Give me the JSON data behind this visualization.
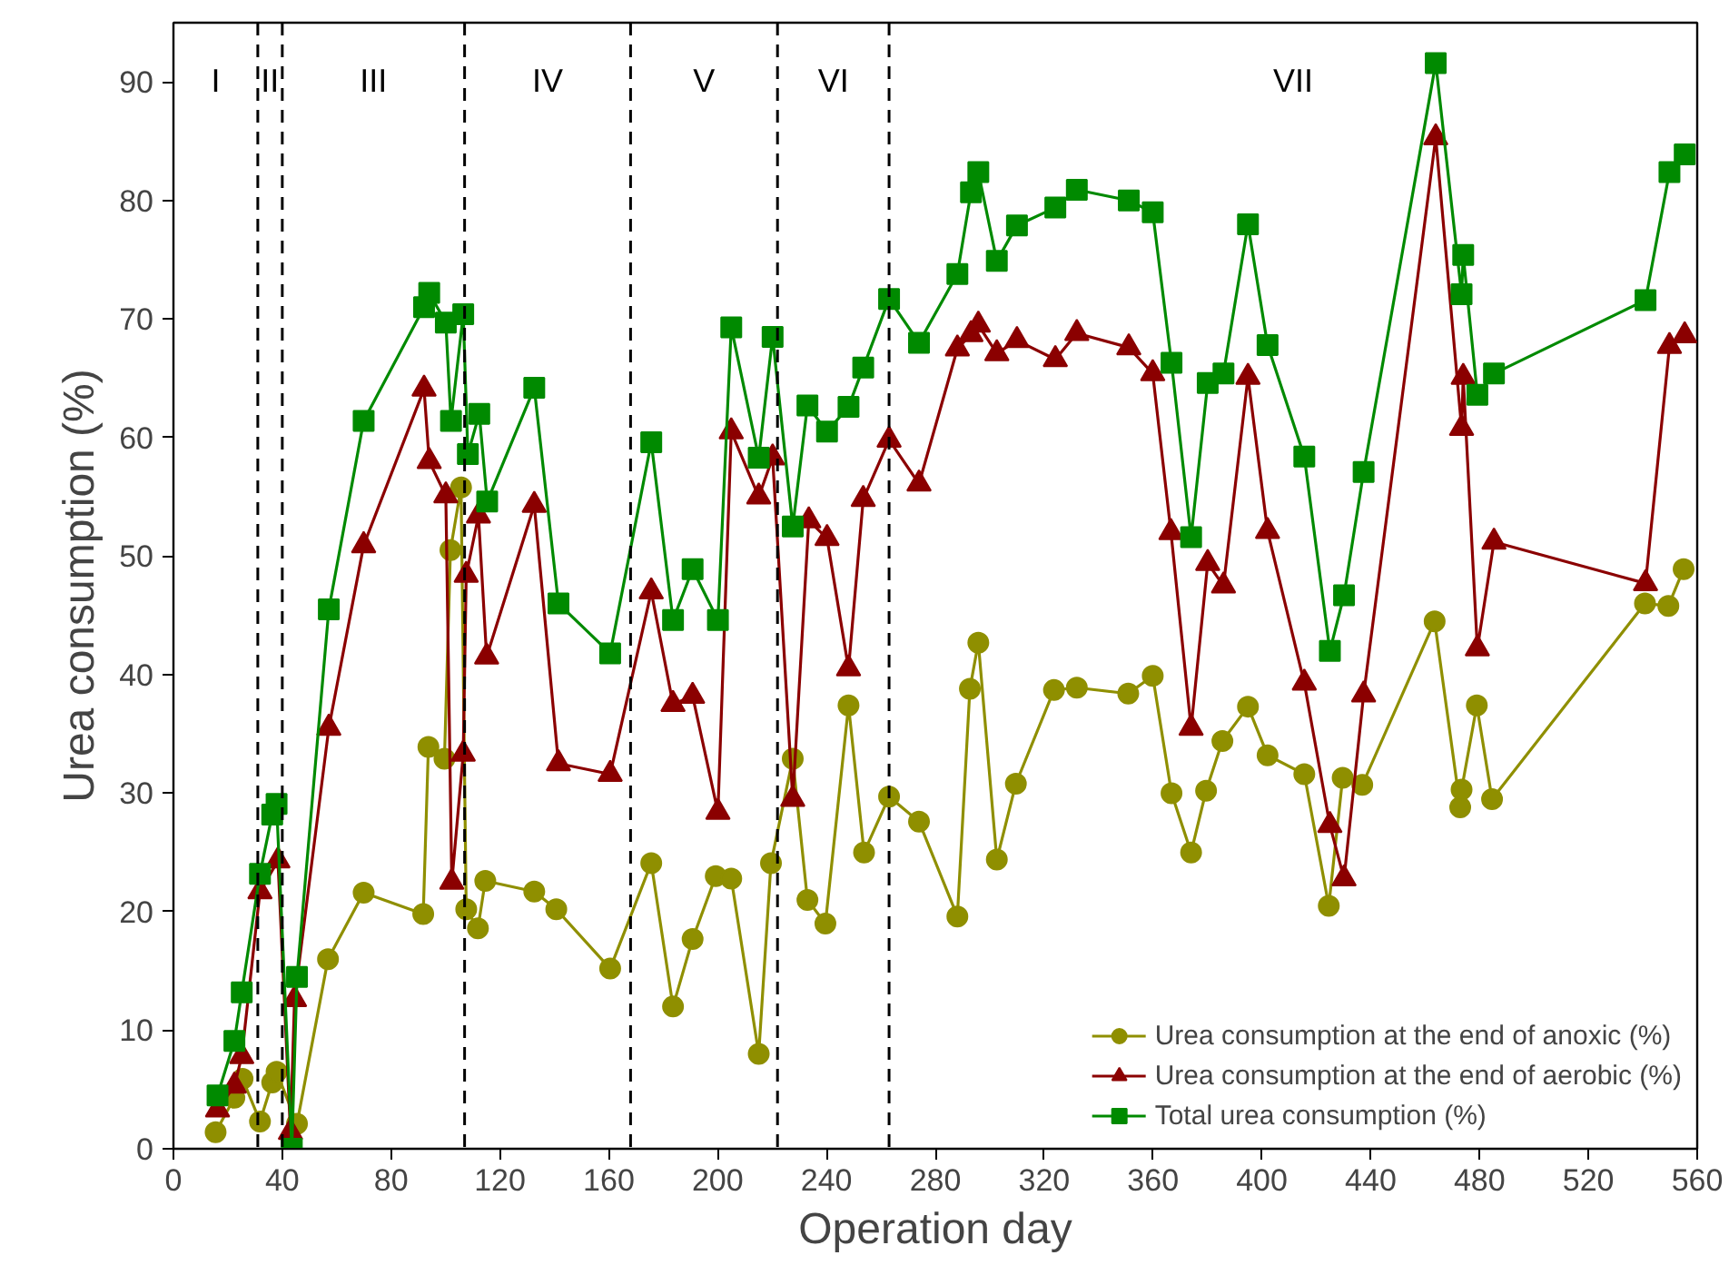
{
  "chart_data": {
    "type": "line",
    "xlabel": "Operation day",
    "ylabel": "Urea consumption (%)",
    "xlim": [
      0,
      560
    ],
    "xticks": [
      0,
      40,
      80,
      120,
      160,
      200,
      240,
      280,
      320,
      360,
      400,
      440,
      480,
      520,
      560
    ],
    "ylim": [
      0,
      95
    ],
    "yticks": [
      0,
      10,
      20,
      30,
      40,
      50,
      60,
      70,
      80,
      90
    ],
    "grid": false,
    "legend": "bottom right",
    "series": [
      {
        "name": "Urea consumption at the end of anoxic (%)",
        "color": "#8f8f00",
        "marker": "circle",
        "x": [
          15.5,
          22.4,
          25.4,
          31.8,
          36.3,
          37.9,
          45.4,
          56.8,
          69.9,
          91.8,
          93.7,
          99.6,
          101.8,
          105.7,
          107.6,
          111.9,
          114.6,
          132.6,
          140.7,
          160.5,
          175.6,
          183.6,
          190.8,
          199.3,
          205,
          215.1,
          219.6,
          227.6,
          233,
          239.6,
          248.1,
          253.8,
          263,
          274,
          288.1,
          292.7,
          295.8,
          302.6,
          309.6,
          323.6,
          332,
          350.9,
          359.9,
          366.8,
          374,
          379.5,
          385.5,
          394.9,
          402.1,
          415.6,
          424.6,
          429.7,
          436.9,
          463.5,
          472.9,
          473.4,
          479,
          484.6,
          540.8,
          549.4,
          555
        ],
        "values": [
          1.4,
          4.3,
          5.9,
          2.3,
          5.6,
          6.5,
          2.1,
          16,
          21.6,
          19.8,
          33.9,
          32.9,
          50.5,
          55.8,
          20.2,
          18.6,
          22.6,
          21.7,
          20.2,
          15.2,
          24.1,
          12,
          17.7,
          23,
          22.8,
          8,
          24.1,
          32.9,
          21,
          19,
          37.4,
          25,
          29.7,
          27.6,
          19.6,
          38.8,
          42.7,
          24.4,
          30.8,
          38.7,
          38.9,
          38.4,
          39.9,
          30,
          25,
          30.2,
          34.4,
          37.3,
          33.2,
          31.6,
          20.5,
          31.3,
          30.7,
          44.5,
          28.8,
          30.3,
          37.4,
          29.5,
          46,
          45.8,
          48.9
        ]
      },
      {
        "name": "Urea consumption at the end of aerobic (%)",
        "color": "#8b0000",
        "marker": "triangle",
        "x": [
          16.2,
          22.4,
          25.1,
          31.8,
          38.4,
          43,
          44.5,
          57.1,
          69.9,
          92.1,
          94,
          100.1,
          102.3,
          106.5,
          107.6,
          112.1,
          115.1,
          132.6,
          141.5,
          160.5,
          175.6,
          183.6,
          190.8,
          200.1,
          205,
          215.1,
          220.2,
          227.6,
          233.5,
          240.2,
          248.1,
          253.5,
          263,
          274,
          288.1,
          293.1,
          295.8,
          302.6,
          310,
          324.1,
          332,
          351.1,
          359.9,
          366.6,
          374,
          380.1,
          385.9,
          394.9,
          402.1,
          415.6,
          425,
          430.2,
          437.4,
          463.9,
          473.4,
          474,
          479.2,
          485.3,
          541,
          549.8,
          555.4
        ],
        "values": [
          3.3,
          5.3,
          7.8,
          21.7,
          24.3,
          1.4,
          12.6,
          35.5,
          50.9,
          64.1,
          58,
          55.1,
          22.5,
          33.3,
          48.4,
          53.4,
          41.5,
          54.3,
          32.5,
          31.6,
          47,
          37.5,
          38.2,
          28.4,
          60.5,
          55,
          58.3,
          29.5,
          53,
          51.5,
          40.5,
          54.8,
          59.8,
          56.1,
          67.5,
          68.7,
          69.5,
          67.1,
          68.2,
          66.6,
          68.8,
          67.6,
          65.4,
          52,
          35.5,
          49.4,
          47.5,
          65.1,
          52.1,
          39.3,
          27.3,
          22.8,
          38.3,
          85.3,
          60.8,
          65.1,
          42.2,
          51.2,
          47.7,
          67.7,
          68.6
        ]
      },
      {
        "name": "Total urea consumption (%)",
        "color": "#008a00",
        "marker": "square",
        "x": [
          16.2,
          22.4,
          25.1,
          31.8,
          36.3,
          37.9,
          43.5,
          45.4,
          57.1,
          69.9,
          92.1,
          94,
          100.1,
          102,
          106.5,
          108.2,
          112.4,
          115.3,
          132.6,
          141.5,
          160.5,
          175.6,
          183.6,
          190.8,
          200.1,
          205,
          215.1,
          220.2,
          227.6,
          233,
          240.2,
          248.1,
          253.5,
          263,
          274,
          288.1,
          293.1,
          295.8,
          302.6,
          310,
          324.1,
          332,
          351.1,
          359.9,
          366.8,
          374,
          380.1,
          385.9,
          394.9,
          402.1,
          415.6,
          425,
          430.2,
          437.4,
          463.9,
          473.4,
          474,
          479.2,
          485.3,
          541,
          549.8,
          555.4
        ],
        "values": [
          4.5,
          9.1,
          13.2,
          23.2,
          28.2,
          29.1,
          0,
          14.5,
          45.5,
          61.4,
          71,
          72.2,
          69.7,
          61.4,
          70.4,
          58.6,
          62,
          54.6,
          64.2,
          46,
          41.8,
          59.6,
          44.6,
          48.9,
          44.6,
          69.3,
          58.3,
          68.5,
          52.5,
          62.7,
          60.5,
          62.6,
          65.9,
          71.7,
          68,
          73.8,
          80.7,
          82.4,
          74.9,
          77.9,
          79.4,
          80.9,
          80,
          79,
          66.3,
          51.6,
          64.6,
          65.4,
          78,
          67.8,
          58.4,
          42,
          46.7,
          57.1,
          91.6,
          72.1,
          75.4,
          63.6,
          65.4,
          71.6,
          82.4,
          83.9
        ]
      }
    ],
    "ref_lines": [
      {
        "axis": "x",
        "value": 31,
        "color": "#000000",
        "line_style": "dashed"
      },
      {
        "axis": "x",
        "value": 40,
        "color": "#000000",
        "line_style": "dashed"
      },
      {
        "axis": "x",
        "value": 107,
        "color": "#000000",
        "line_style": "dashed"
      },
      {
        "axis": "x",
        "value": 168,
        "color": "#000000",
        "line_style": "dashed"
      },
      {
        "axis": "x",
        "value": 222,
        "color": "#000000",
        "line_style": "dashed"
      },
      {
        "axis": "x",
        "value": 263,
        "color": "#000000",
        "line_style": "dashed"
      }
    ],
    "annotations": [
      "I",
      "II",
      "III",
      "IV",
      "V",
      "VI",
      "VII"
    ]
  }
}
